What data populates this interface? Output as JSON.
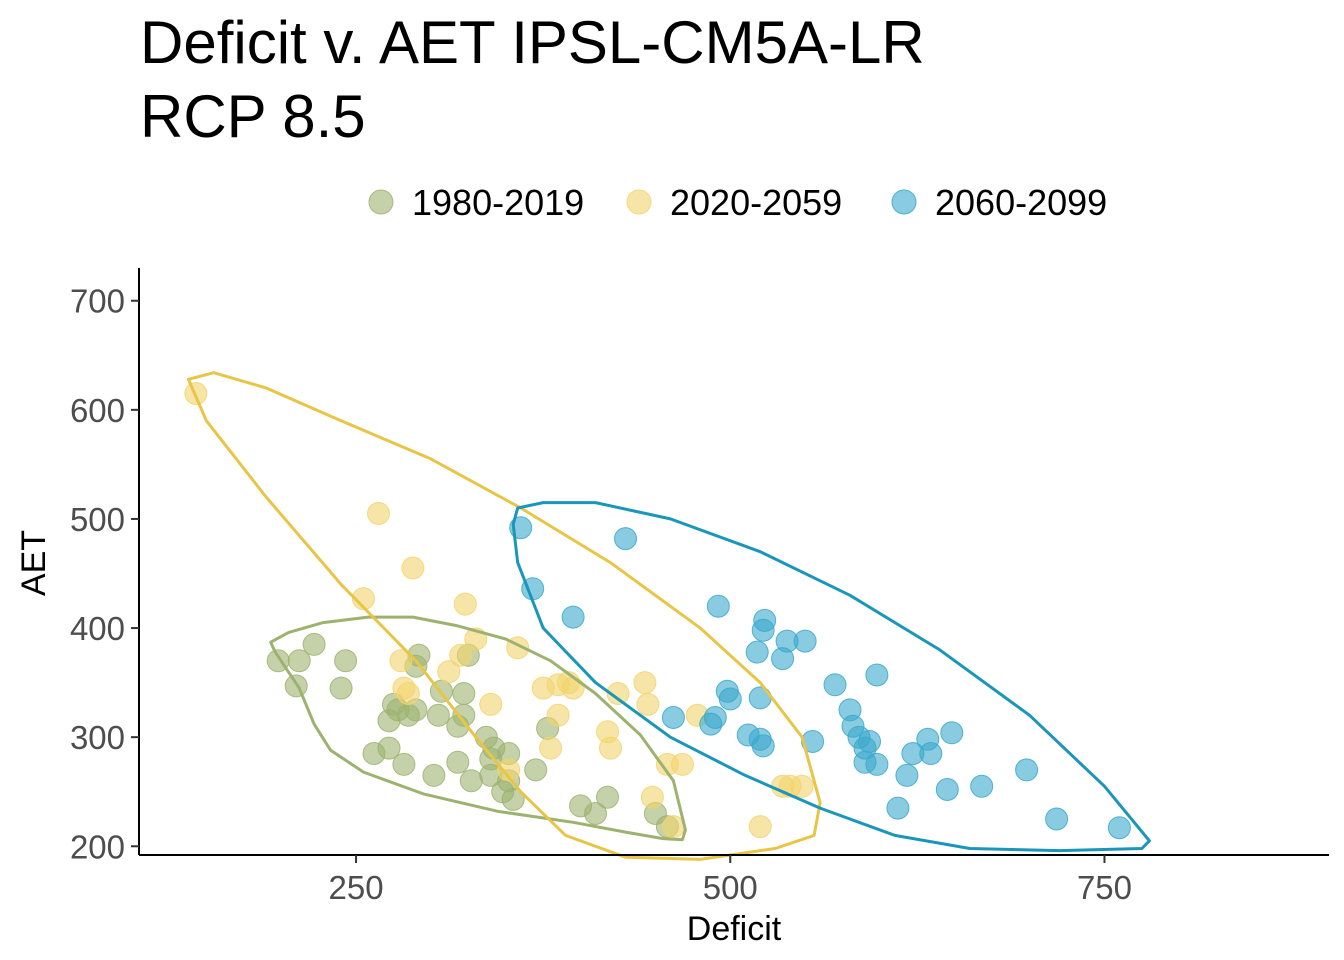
{
  "chart_data": {
    "type": "scatter",
    "title_lines": [
      "Deficit v. AET IPSL-CM5A-LR",
      "RCP 8.5"
    ],
    "xlabel": "Deficit",
    "ylabel": "AET",
    "xlim": [
      105,
      900
    ],
    "ylim": [
      192,
      730
    ],
    "xticks": [
      250,
      500,
      750
    ],
    "yticks": [
      200,
      300,
      400,
      500,
      600,
      700
    ],
    "legend_position": "top",
    "series": [
      {
        "name": "1980-2019",
        "color": "#9DB26F",
        "points": [
          [
            198,
            370
          ],
          [
            210,
            347
          ],
          [
            212,
            370
          ],
          [
            222,
            385
          ],
          [
            240,
            345
          ],
          [
            243,
            370
          ],
          [
            262,
            285
          ],
          [
            272,
            290
          ],
          [
            272,
            315
          ],
          [
            275,
            330
          ],
          [
            278,
            325
          ],
          [
            282,
            275
          ],
          [
            285,
            320
          ],
          [
            290,
            365
          ],
          [
            290,
            325
          ],
          [
            292,
            375
          ],
          [
            302,
            265
          ],
          [
            305,
            320
          ],
          [
            307,
            342
          ],
          [
            318,
            277
          ],
          [
            318,
            310
          ],
          [
            322,
            320
          ],
          [
            322,
            340
          ],
          [
            325,
            375
          ],
          [
            327,
            260
          ],
          [
            337,
            300
          ],
          [
            340,
            280
          ],
          [
            342,
            290
          ],
          [
            348,
            250
          ],
          [
            352,
            260
          ],
          [
            352,
            285
          ],
          [
            355,
            243
          ],
          [
            370,
            270
          ],
          [
            378,
            308
          ],
          [
            400,
            237
          ],
          [
            410,
            230
          ],
          [
            418,
            245
          ],
          [
            450,
            230
          ],
          [
            458,
            218
          ],
          [
            340,
            265
          ]
        ]
      },
      {
        "name": "2020-2059",
        "color": "#F2D46D",
        "points": [
          [
            143,
            615
          ],
          [
            255,
            427
          ],
          [
            265,
            505
          ],
          [
            288,
            455
          ],
          [
            280,
            370
          ],
          [
            282,
            345
          ],
          [
            312,
            360
          ],
          [
            320,
            375
          ],
          [
            323,
            422
          ],
          [
            330,
            390
          ],
          [
            340,
            330
          ],
          [
            352,
            270
          ],
          [
            358,
            382
          ],
          [
            375,
            345
          ],
          [
            380,
            290
          ],
          [
            385,
            348
          ],
          [
            385,
            320
          ],
          [
            392,
            350
          ],
          [
            395,
            345
          ],
          [
            418,
            305
          ],
          [
            420,
            290
          ],
          [
            425,
            340
          ],
          [
            443,
            350
          ],
          [
            445,
            330
          ],
          [
            448,
            245
          ],
          [
            458,
            275
          ],
          [
            462,
            218
          ],
          [
            468,
            275
          ],
          [
            478,
            320
          ],
          [
            520,
            218
          ],
          [
            535,
            255
          ],
          [
            540,
            255
          ],
          [
            548,
            255
          ],
          [
            285,
            340
          ]
        ]
      },
      {
        "name": "2060-2099",
        "color": "#3AA9CB",
        "points": [
          [
            360,
            492
          ],
          [
            368,
            436
          ],
          [
            395,
            410
          ],
          [
            430,
            482
          ],
          [
            462,
            318
          ],
          [
            487,
            312
          ],
          [
            490,
            318
          ],
          [
            492,
            420
          ],
          [
            498,
            342
          ],
          [
            500,
            335
          ],
          [
            512,
            302
          ],
          [
            518,
            378
          ],
          [
            520,
            298
          ],
          [
            520,
            336
          ],
          [
            522,
            398
          ],
          [
            522,
            292
          ],
          [
            523,
            407
          ],
          [
            535,
            372
          ],
          [
            538,
            388
          ],
          [
            550,
            388
          ],
          [
            555,
            296
          ],
          [
            570,
            348
          ],
          [
            580,
            325
          ],
          [
            582,
            310
          ],
          [
            586,
            300
          ],
          [
            590,
            277
          ],
          [
            590,
            290
          ],
          [
            593,
            296
          ],
          [
            598,
            275
          ],
          [
            598,
            357
          ],
          [
            612,
            235
          ],
          [
            618,
            265
          ],
          [
            622,
            285
          ],
          [
            632,
            298
          ],
          [
            634,
            285
          ],
          [
            645,
            252
          ],
          [
            648,
            304
          ],
          [
            668,
            255
          ],
          [
            698,
            270
          ],
          [
            718,
            225
          ],
          [
            760,
            217
          ]
        ]
      }
    ],
    "ellipses": [
      {
        "series": "1980-2019",
        "color": "#9DB26F",
        "path": [
          [
            193,
            387
          ],
          [
            205,
            396
          ],
          [
            228,
            405
          ],
          [
            258,
            410
          ],
          [
            288,
            410
          ],
          [
            318,
            402
          ],
          [
            350,
            390
          ],
          [
            380,
            370
          ],
          [
            410,
            340
          ],
          [
            440,
            302
          ],
          [
            462,
            260
          ],
          [
            470,
            215
          ],
          [
            468,
            206
          ],
          [
            455,
            207
          ],
          [
            430,
            213
          ],
          [
            395,
            222
          ],
          [
            345,
            232
          ],
          [
            295,
            248
          ],
          [
            255,
            268
          ],
          [
            233,
            288
          ],
          [
            222,
            312
          ],
          [
            212,
            345
          ],
          [
            196,
            378
          ],
          [
            193,
            387
          ]
        ]
      },
      {
        "series": "2020-2059",
        "color": "#E8C547",
        "path": [
          [
            138,
            628
          ],
          [
            155,
            634
          ],
          [
            190,
            620
          ],
          [
            240,
            590
          ],
          [
            300,
            555
          ],
          [
            360,
            510
          ],
          [
            420,
            460
          ],
          [
            480,
            400
          ],
          [
            520,
            350
          ],
          [
            548,
            300
          ],
          [
            560,
            240
          ],
          [
            556,
            210
          ],
          [
            530,
            198
          ],
          [
            480,
            188
          ],
          [
            430,
            190
          ],
          [
            390,
            210
          ],
          [
            360,
            250
          ],
          [
            330,
            300
          ],
          [
            290,
            370
          ],
          [
            240,
            440
          ],
          [
            190,
            520
          ],
          [
            150,
            590
          ],
          [
            138,
            628
          ]
        ]
      },
      {
        "series": "2060-2099",
        "color": "#1A96BA",
        "path": [
          [
            358,
            510
          ],
          [
            375,
            515
          ],
          [
            410,
            515
          ],
          [
            460,
            500
          ],
          [
            520,
            470
          ],
          [
            580,
            430
          ],
          [
            640,
            380
          ],
          [
            700,
            320
          ],
          [
            750,
            255
          ],
          [
            780,
            205
          ],
          [
            775,
            198
          ],
          [
            720,
            196
          ],
          [
            660,
            198
          ],
          [
            610,
            210
          ],
          [
            560,
            235
          ],
          [
            510,
            265
          ],
          [
            460,
            300
          ],
          [
            410,
            350
          ],
          [
            375,
            400
          ],
          [
            358,
            460
          ],
          [
            355,
            495
          ],
          [
            358,
            510
          ]
        ]
      }
    ]
  }
}
